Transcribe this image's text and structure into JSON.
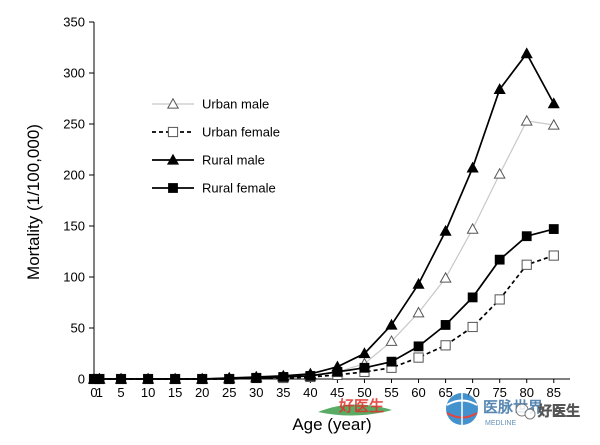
{
  "chart_data": {
    "type": "line",
    "title": "",
    "xlabel": "Age (year)",
    "ylabel": "Mortality (1/100,000)",
    "categories": [
      "0",
      "1",
      "5",
      "10",
      "15",
      "20",
      "25",
      "30",
      "35",
      "40",
      "45",
      "50",
      "55",
      "60",
      "65",
      "70",
      "75",
      "80",
      "85"
    ],
    "x": [
      0,
      1,
      5,
      10,
      15,
      20,
      25,
      30,
      35,
      40,
      45,
      50,
      55,
      60,
      65,
      70,
      75,
      80,
      85
    ],
    "ylim": [
      0,
      350
    ],
    "yticks": [
      0,
      50,
      100,
      150,
      200,
      250,
      300,
      350
    ],
    "grid": false,
    "legend_position": "top-left",
    "series": [
      {
        "name": "Urban male",
        "color": "#c8c8c8",
        "line": "solid",
        "marker": "triangle-open",
        "values": [
          0,
          0,
          0,
          0,
          0,
          0,
          0,
          1,
          2,
          3,
          7,
          15,
          37,
          65,
          99,
          147,
          201,
          253,
          249
        ]
      },
      {
        "name": "Urban female",
        "color": "#000000",
        "line": "dashed",
        "marker": "square-open",
        "values": [
          0,
          0,
          0,
          0,
          0,
          0,
          0,
          1,
          1,
          2,
          4,
          7,
          11,
          21,
          33,
          51,
          78,
          112,
          121
        ]
      },
      {
        "name": "Rural male",
        "color": "#000000",
        "line": "solid",
        "marker": "triangle-filled",
        "values": [
          0,
          0,
          0,
          0,
          0,
          0,
          1,
          2,
          3,
          5,
          12,
          25,
          53,
          93,
          145,
          207,
          284,
          319,
          270
        ]
      },
      {
        "name": "Rural female",
        "color": "#000000",
        "line": "solid",
        "marker": "square-filled",
        "values": [
          0,
          0,
          0,
          0,
          0,
          0,
          0,
          1,
          2,
          3,
          7,
          11,
          17,
          32,
          53,
          80,
          117,
          140,
          147
        ]
      }
    ]
  },
  "watermark": {
    "logo_text": "好医生",
    "brand_text": "医脉世界",
    "brand_sub": "MEDLINE",
    "account_text": "好医生"
  }
}
